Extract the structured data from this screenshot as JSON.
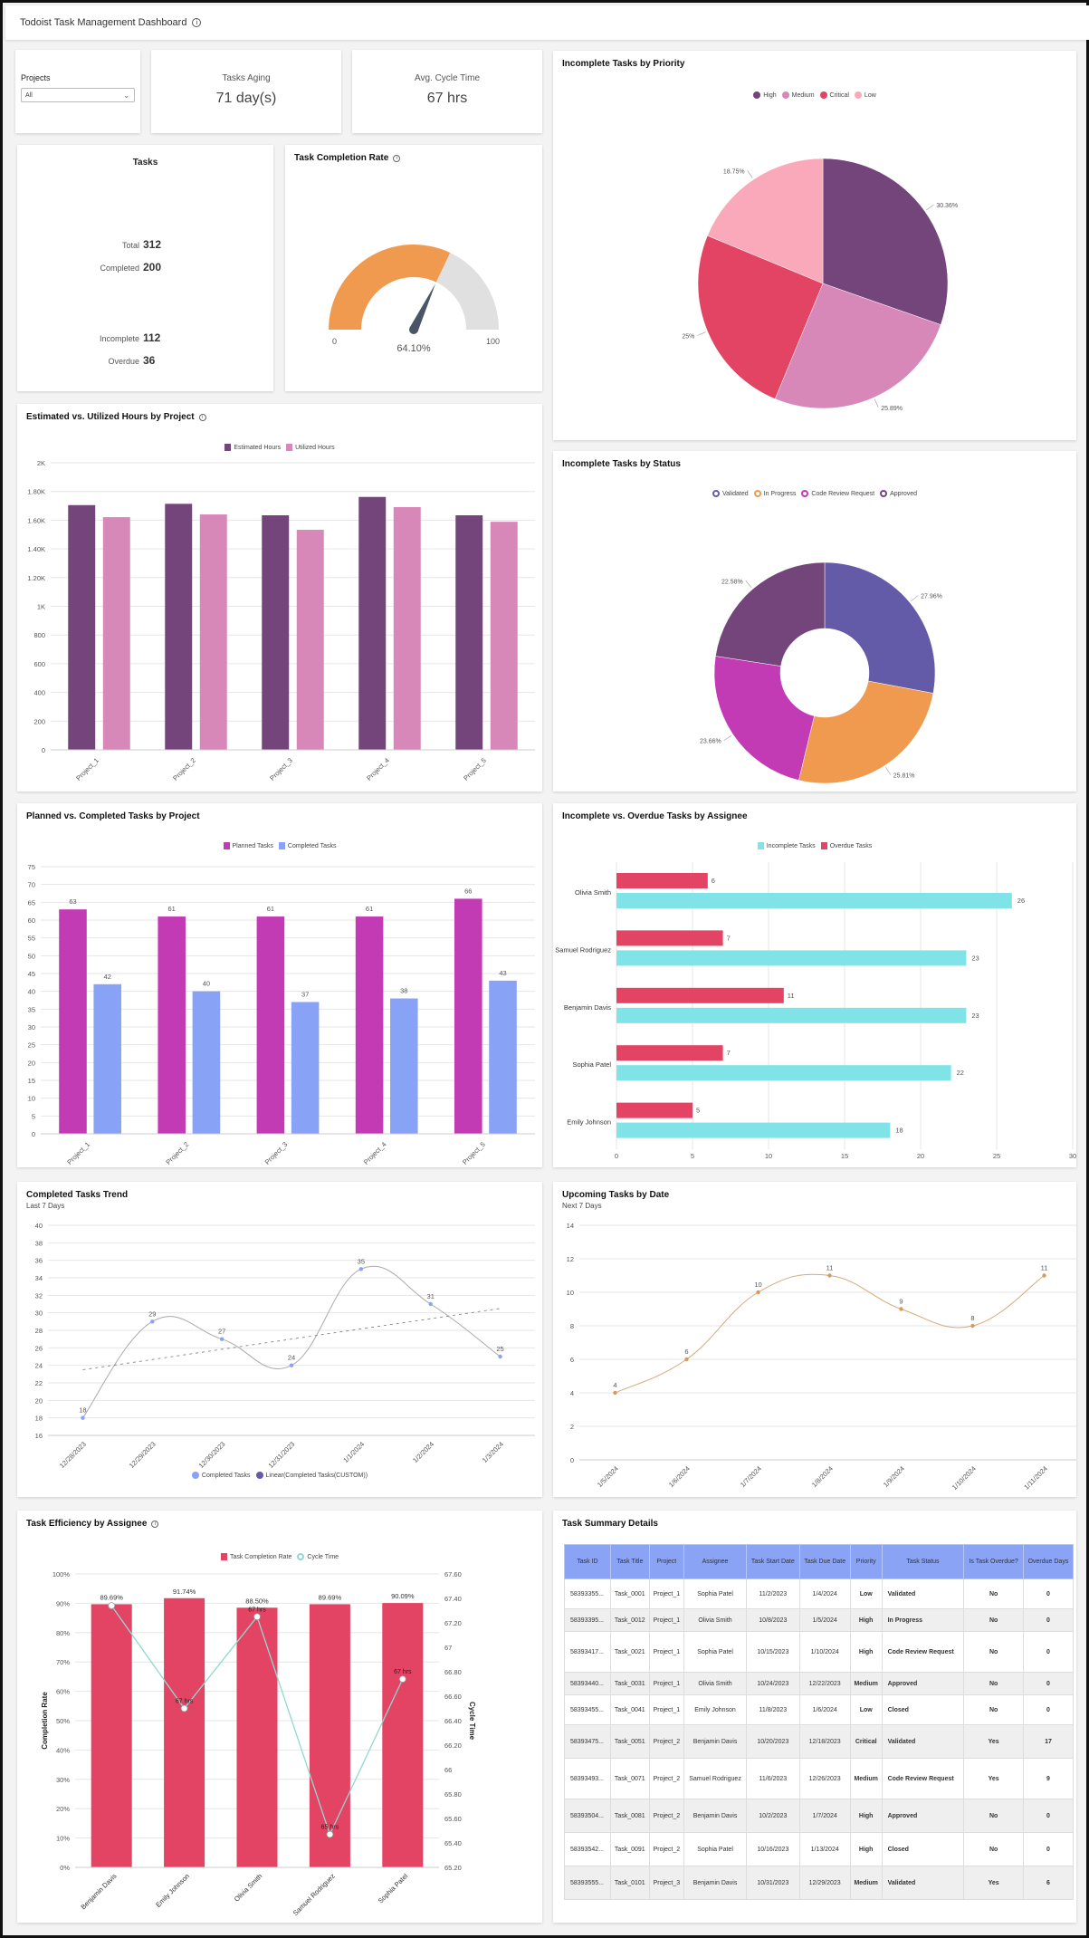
{
  "header": {
    "title": "Todoist Task Management Dashboard",
    "info_icon": "info-icon"
  },
  "filters": {
    "projects_label": "Projects",
    "projects_value": "All"
  },
  "kpis": {
    "tasks_aging": {
      "label": "Tasks Aging",
      "value": "71 day(s)"
    },
    "avg_cycle_time": {
      "label": "Avg. Cycle Time",
      "value": "67 hrs"
    }
  },
  "tasks": {
    "title": "Tasks",
    "rows": [
      {
        "label": "Total",
        "value": "312"
      },
      {
        "label": "Completed",
        "value": "200"
      },
      {
        "label": "Incomplete",
        "value": "112"
      },
      {
        "label": "Overdue",
        "value": "36"
      }
    ]
  },
  "chart_data": [
    {
      "id": "completion-gauge",
      "type": "gauge",
      "title": "Task Completion Rate",
      "value": 64.1,
      "value_label": "64.10%",
      "min": 0,
      "max": 100,
      "min_label": "0",
      "max_label": "100",
      "colors": {
        "fill": "#ef9a4f",
        "track": "#e0e0e0",
        "needle": "#4a5566"
      }
    },
    {
      "id": "priority-pie",
      "type": "pie",
      "title": "Incomplete Tasks by Priority",
      "legend": [
        "High",
        "Medium",
        "Critical",
        "Low"
      ],
      "legend_position": "top",
      "slices": [
        {
          "name": "High",
          "value": 30.36,
          "label": "30.36%",
          "color": "#73457a"
        },
        {
          "name": "Medium",
          "value": 25.89,
          "label": "25.89%",
          "color": "#d888b8"
        },
        {
          "name": "Critical",
          "value": 25.0,
          "label": "25%",
          "color": "#e34463"
        },
        {
          "name": "Low",
          "value": 18.75,
          "label": "18.75%",
          "color": "#f9a9ba"
        }
      ]
    },
    {
      "id": "hours-bar",
      "type": "bar",
      "title": "Estimated vs. Utilized Hours by Project",
      "categories": [
        "Project_1",
        "Project_2",
        "Project_3",
        "Project_4",
        "Project_5"
      ],
      "series": [
        {
          "name": "Estimated Hours",
          "color": "#73457a",
          "values": [
            1705,
            1714,
            1634,
            1762,
            1634
          ]
        },
        {
          "name": "Utilized Hours",
          "color": "#d888b8",
          "values": [
            1621,
            1640,
            1533,
            1691,
            1589
          ]
        }
      ],
      "ylim": [
        0,
        2000
      ],
      "yticks": [
        "0",
        "200",
        "400",
        "600",
        "800",
        "1K",
        "1.20K",
        "1.40K",
        "1.60K",
        "1.80K",
        "2K"
      ],
      "legend_position": "top"
    },
    {
      "id": "status-donut",
      "type": "pie",
      "title": "Incomplete Tasks by Status",
      "legend": [
        "Validated",
        "In Progress",
        "Code Review Request",
        "Approved"
      ],
      "legend_position": "top",
      "slices": [
        {
          "name": "Validated",
          "value": 27.96,
          "label": "27.96%",
          "color": "#635aa8"
        },
        {
          "name": "In Progress",
          "value": 25.81,
          "label": "25.81%",
          "color": "#ef9a4f"
        },
        {
          "name": "Code Review Request",
          "value": 23.66,
          "label": "23.66%",
          "color": "#c33bb4"
        },
        {
          "name": "Approved",
          "value": 22.58,
          "label": "22.58%",
          "color": "#73457a"
        }
      ]
    },
    {
      "id": "planned-bar",
      "type": "bar",
      "title": "Planned vs. Completed Tasks by Project",
      "categories": [
        "Project_1",
        "Project_2",
        "Project_3",
        "Project_4",
        "Project_5"
      ],
      "series": [
        {
          "name": "Planned Tasks",
          "color": "#c33bb4",
          "values": [
            63,
            61,
            61,
            61,
            66
          ]
        },
        {
          "name": "Completed Tasks",
          "color": "#88a2f6",
          "values": [
            42,
            40,
            37,
            38,
            43
          ]
        }
      ],
      "ylim": [
        0,
        75
      ],
      "yticks": [
        "0",
        "5",
        "10",
        "15",
        "20",
        "25",
        "30",
        "35",
        "40",
        "45",
        "50",
        "55",
        "60",
        "65",
        "70",
        "75"
      ],
      "legend_position": "top"
    },
    {
      "id": "assignee-hbar",
      "type": "bar",
      "orientation": "horizontal",
      "title": "Incomplete vs. Overdue Tasks by Assignee",
      "categories": [
        "Olivia Smith",
        "Samuel Rodriguez",
        "Benjamin Davis",
        "Sophia Patel",
        "Emily Johnson"
      ],
      "series": [
        {
          "name": "Incomplete Tasks",
          "color": "#7fe3e8",
          "values": [
            26,
            23,
            23,
            22,
            18
          ]
        },
        {
          "name": "Overdue Tasks",
          "color": "#e34463",
          "values": [
            6,
            7,
            11,
            7,
            5
          ]
        }
      ],
      "xlim": [
        0,
        30
      ],
      "xticks": [
        "0",
        "5",
        "10",
        "15",
        "20",
        "25",
        "30"
      ],
      "legend_position": "top"
    },
    {
      "id": "trend-line",
      "type": "line",
      "title": "Completed Tasks Trend",
      "subtitle": "Last 7 Days",
      "x": [
        "12/28/2023",
        "12/29/2023",
        "12/30/2023",
        "12/31/2023",
        "1/1/2024",
        "1/2/2024",
        "1/3/2024"
      ],
      "series": [
        {
          "name": "Completed Tasks",
          "color": "#88a2f6",
          "values": [
            18,
            29,
            27,
            24,
            35,
            31,
            25
          ]
        },
        {
          "name": "Linear(Completed Tasks(CUSTOM))",
          "color": "#635aa8",
          "trend": [
            23.5,
            30.5
          ]
        }
      ],
      "ylim": [
        16,
        40
      ],
      "yticks": [
        "16",
        "18",
        "20",
        "22",
        "24",
        "26",
        "28",
        "30",
        "32",
        "34",
        "36",
        "38",
        "40"
      ],
      "legend_position": "bottom"
    },
    {
      "id": "upcoming-line",
      "type": "line",
      "title": "Upcoming Tasks by Date",
      "subtitle": "Next 7 Days",
      "x": [
        "1/5/2024",
        "1/6/2024",
        "1/7/2024",
        "1/8/2024",
        "1/9/2024",
        "1/10/2024",
        "1/11/2024"
      ],
      "series": [
        {
          "name": "Upcoming Tasks",
          "color": "#d6a878",
          "values": [
            4,
            6,
            10,
            11,
            9,
            8,
            11
          ]
        }
      ],
      "ylim": [
        0,
        14
      ],
      "yticks": [
        "0",
        "2",
        "4",
        "6",
        "8",
        "10",
        "12",
        "14"
      ]
    },
    {
      "id": "efficiency-combo",
      "type": "bar",
      "title": "Task Efficiency by Assignee",
      "categories": [
        "Benjamin Davis",
        "Emily Johnson",
        "Olivia Smith",
        "Samuel Rodriguez",
        "Sophia Patel"
      ],
      "series": [
        {
          "name": "Task Completion Rate",
          "color": "#e34463",
          "values": [
            89.69,
            91.74,
            88.5,
            89.69,
            90.09
          ],
          "labels": [
            "89.69%",
            "91.74%",
            "88.50%",
            "89.69%",
            "90.09%"
          ]
        },
        {
          "name": "Cycle Time",
          "type": "line",
          "color": "#8fd9cf",
          "axis": "right",
          "values": [
            67.34,
            66.5,
            67.25,
            65.47,
            66.74
          ],
          "labels": [
            "",
            "67 hrs",
            "67 hrs",
            "65 hrs",
            "67 hrs"
          ]
        }
      ],
      "ylabel": "Completion Rate",
      "y2label": "Cycle Time",
      "ylim": [
        0,
        100
      ],
      "y2lim": [
        65.2,
        67.6
      ],
      "yticks": [
        "0%",
        "10%",
        "20%",
        "30%",
        "40%",
        "50%",
        "60%",
        "70%",
        "80%",
        "90%",
        "100%"
      ],
      "y2ticks": [
        "65.20",
        "65.40",
        "65.60",
        "65.80",
        "66",
        "66.20",
        "66.40",
        "66.60",
        "66.80",
        "67",
        "67.20",
        "67.40",
        "67.60"
      ],
      "legend_position": "top"
    }
  ],
  "table": {
    "title": "Task Summary Details",
    "columns": [
      "Task ID",
      "Task Title",
      "Project",
      "Assignee",
      "Task Start Date",
      "Task Due Date",
      "Priority",
      "Task Status",
      "Is Task Overdue?",
      "Overdue Days"
    ],
    "rows": [
      [
        "58393355...",
        "Task_0001",
        "Project_1",
        "Sophia Patel",
        "11/2/2023",
        "1/4/2024",
        "Low",
        "Validated",
        "No",
        "0"
      ],
      [
        "58393395...",
        "Task_0012",
        "Project_1",
        "Olivia Smith",
        "10/8/2023",
        "1/5/2024",
        "High",
        "In Progress",
        "No",
        "0"
      ],
      [
        "58393417...",
        "Task_0021",
        "Project_1",
        "Sophia Patel",
        "10/15/2023",
        "1/10/2024",
        "High",
        "Code Review Request",
        "No",
        "0"
      ],
      [
        "58393440...",
        "Task_0031",
        "Project_1",
        "Olivia Smith",
        "10/24/2023",
        "12/22/2023",
        "Medium",
        "Approved",
        "No",
        "0"
      ],
      [
        "58393455...",
        "Task_0041",
        "Project_1",
        "Emily Johnson",
        "11/8/2023",
        "1/6/2024",
        "Low",
        "Closed",
        "No",
        "0"
      ],
      [
        "58393475...",
        "Task_0051",
        "Project_2",
        "Benjamin Davis",
        "10/20/2023",
        "12/18/2023",
        "Critical",
        "Validated",
        "Yes",
        "17"
      ],
      [
        "58393493...",
        "Task_0071",
        "Project_2",
        "Samuel Rodriguez",
        "11/6/2023",
        "12/26/2023",
        "Medium",
        "Code Review Request",
        "Yes",
        "9"
      ],
      [
        "58393504...",
        "Task_0081",
        "Project_2",
        "Benjamin Davis",
        "10/2/2023",
        "1/7/2024",
        "High",
        "Approved",
        "No",
        "0"
      ],
      [
        "58393542...",
        "Task_0091",
        "Project_2",
        "Sophia Patel",
        "10/16/2023",
        "1/13/2024",
        "High",
        "Closed",
        "No",
        "0"
      ],
      [
        "58393555...",
        "Task_0101",
        "Project_3",
        "Benjamin Davis",
        "10/31/2023",
        "12/29/2023",
        "Medium",
        "Validated",
        "Yes",
        "6"
      ]
    ]
  }
}
